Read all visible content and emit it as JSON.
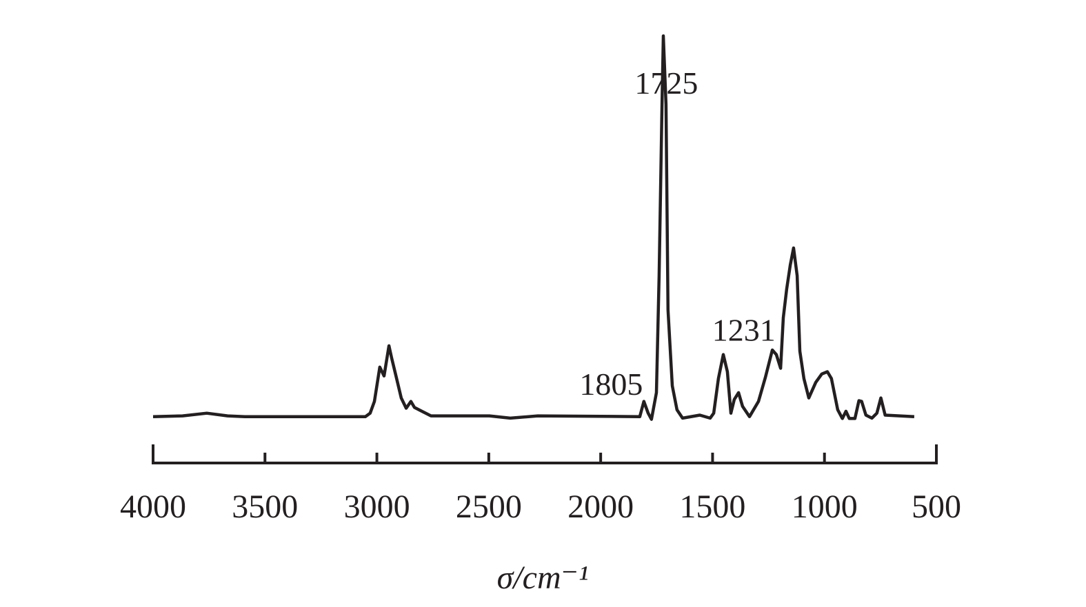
{
  "chart_data": {
    "type": "line",
    "x_label": "σ/cm⁻¹",
    "xlim": [
      4000,
      500
    ],
    "xticks": [
      4000,
      3500,
      3000,
      2500,
      2000,
      1500,
      1000,
      500
    ],
    "ylim": [
      -12,
      102
    ],
    "annotations": [
      1725,
      1805,
      1231
    ],
    "series": [
      {
        "color": "#231f20",
        "x": [
          4000,
          3868,
          3760,
          3667,
          3590,
          3051,
          3030,
          3011,
          2987,
          2968,
          2946,
          2934,
          2913,
          2891,
          2869,
          2848,
          2832,
          2799,
          2758,
          2497,
          2404,
          2281,
          1825,
          1807,
          1788,
          1773,
          1751,
          1739,
          1726,
          1720,
          1708,
          1699,
          1680,
          1659,
          1634,
          1557,
          1511,
          1495,
          1474,
          1452,
          1434,
          1418,
          1403,
          1384,
          1366,
          1335,
          1295,
          1264,
          1233,
          1215,
          1196,
          1184,
          1169,
          1153,
          1138,
          1122,
          1110,
          1092,
          1070,
          1039,
          1012,
          987,
          969,
          941,
          920,
          904,
          889,
          864,
          846,
          834,
          815,
          788,
          766,
          748,
          729,
          599
        ],
        "values": [
          0,
          0.2,
          0.9,
          0.2,
          0,
          0,
          0.9,
          4,
          13,
          10.7,
          18.6,
          15.4,
          10.3,
          4.9,
          2.2,
          4,
          2.4,
          1.4,
          0.2,
          0.2,
          -0.4,
          0.2,
          0,
          4,
          0.9,
          -0.7,
          6.3,
          37,
          82,
          100,
          82,
          28,
          8.1,
          1.8,
          -0.4,
          0.4,
          -0.4,
          0.9,
          10,
          16.3,
          11.8,
          0.9,
          4.5,
          6.3,
          2.7,
          0,
          4,
          10.3,
          17.5,
          16.3,
          12.7,
          26,
          33.5,
          39.8,
          44.3,
          37,
          17.2,
          10,
          4.9,
          9,
          11.2,
          11.8,
          10,
          1.8,
          -0.5,
          1.4,
          -0.5,
          -0.5,
          4.2,
          4,
          0.4,
          -0.4,
          0.9,
          4.9,
          0.4,
          0
        ]
      }
    ]
  }
}
